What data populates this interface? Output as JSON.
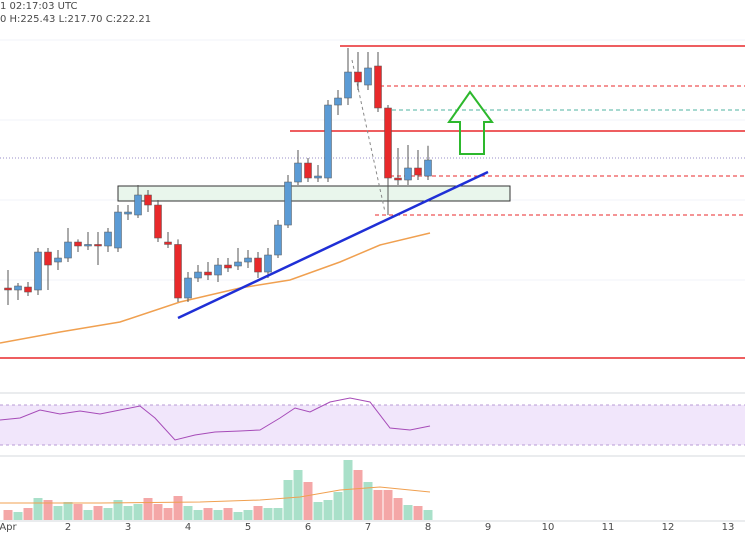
{
  "chart_data": {
    "type": "candlestick",
    "header": {
      "time": "1 02:17:03 UTC",
      "ohlc": "0 H:225.43 L:217.70 C:222.21"
    },
    "x_labels": [
      "Apr",
      "2",
      "3",
      "4",
      "5",
      "6",
      "7",
      "8",
      "9",
      "10",
      "11",
      "12",
      "13"
    ],
    "ylim": [
      170.35,
      258.29
    ],
    "up_color": "#5b9bd5",
    "down_color": "#e8292b",
    "volume_up_color": "#a9e0c9",
    "volume_down_color": "#f4a7a7",
    "open": [
      193.35,
      192.9,
      193.57,
      192.9,
      201.46,
      199.21,
      200.11,
      203.72,
      202.82,
      203.17,
      202.82,
      202.37,
      210.03,
      209.81,
      214.32,
      212.06,
      203.72,
      203.17,
      191.09,
      195.6,
      196.95,
      196.28,
      198.53,
      198.31,
      199.21,
      200.11,
      196.95,
      200.79,
      207.55,
      217.25,
      221.53,
      218.15,
      218.15,
      234.61,
      236.19,
      242.05,
      239.12,
      243.41,
      233.94,
      218.15,
      217.7,
      220.41,
      218.6
    ],
    "high": [
      197.4,
      194.47,
      194.7,
      202.37,
      202.37,
      201.92,
      206.88,
      204.3,
      205.97,
      205.97,
      206.88,
      212.06,
      212.06,
      216.57,
      215.44,
      213.19,
      205.97,
      204.3,
      196.95,
      198.53,
      199.21,
      200.11,
      200.11,
      202.37,
      201.92,
      201.46,
      202.37,
      208.68,
      218.83,
      224.47,
      222.66,
      221.08,
      235.74,
      237.99,
      247.47,
      246.56,
      246.56,
      246.56,
      234.61,
      224.92,
      225.59,
      224.47,
      225.43
    ],
    "low": [
      189.51,
      190.64,
      191.54,
      191.77,
      192.9,
      197.4,
      199.21,
      201.46,
      201.92,
      198.53,
      201.46,
      201.46,
      208.68,
      209.13,
      210.48,
      203.72,
      202.37,
      190.19,
      190.19,
      194.7,
      195.15,
      194.7,
      196.95,
      197.4,
      197.86,
      195.6,
      195.6,
      200.11,
      206.88,
      216.57,
      217.25,
      217.25,
      217.25,
      232.36,
      234.61,
      237.99,
      237.99,
      233.03,
      209.81,
      216.57,
      216.57,
      217.7,
      217.7
    ],
    "close": [
      192.9,
      193.8,
      192.44,
      201.46,
      198.53,
      200.11,
      203.72,
      202.82,
      203.17,
      202.82,
      205.97,
      210.48,
      210.48,
      214.32,
      212.06,
      204.62,
      203.17,
      191.09,
      195.6,
      196.95,
      196.28,
      198.53,
      197.86,
      199.21,
      200.11,
      196.95,
      200.79,
      207.55,
      217.25,
      221.53,
      218.15,
      218.6,
      234.61,
      236.19,
      242.05,
      239.8,
      242.96,
      233.94,
      218.15,
      217.7,
      220.41,
      218.83,
      222.21
    ],
    "volume": [
      10,
      8,
      12,
      22,
      20,
      14,
      18,
      16,
      10,
      14,
      12,
      20,
      14,
      16,
      22,
      16,
      12,
      24,
      14,
      10,
      12,
      10,
      12,
      8,
      10,
      14,
      12,
      12,
      40,
      50,
      38,
      18,
      20,
      28,
      60,
      50,
      38,
      30,
      30,
      22,
      15,
      14,
      10
    ]
  }
}
